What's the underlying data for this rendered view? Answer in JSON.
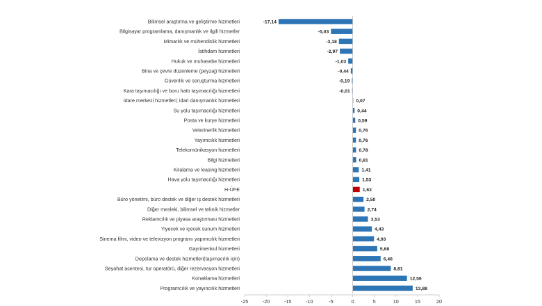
{
  "chart_data": {
    "type": "bar",
    "orientation": "horizontal",
    "categories": [
      "Bilimsel araştırma ve geliştirme hizmetleri",
      "Bilgisayar programlama, danışmanlık ve ilgili hizmetler",
      "Mimarlık ve mühendislik hizmetleri",
      "İstihdam hizmetleri",
      "Hukuk ve muhasebe hizmetleri",
      "Bina ve çevre düzenleme (peyzaj) hizmetleri",
      "Güvenlik ve soruşturma hizmetleri",
      "Kara taşımacılığı ve boru hattı taşımacılığı hizmetleri",
      "İdare merkezi hizmetleri; idari danışmanlık hizmetleri",
      "Su yolu taşımacılığı hizmetleri",
      "Posta ve kurye hizmetleri",
      "Veterinerlik hizmetleri",
      "Yayımcılık hizmetleri",
      "Telekomünikasyon hizmetleri",
      "Bilgi hizmetleri",
      "Kiralama ve leasing hizmetleri",
      "Hava yolu taşımacılığı hizmetleri",
      "H-ÜFE",
      "Büro yönetimi, büro destek ve diğer iş destek hizmetleri",
      "Diğer mesleki, bilimsel ve teknik hizmetler",
      "Reklamcılık ve piyasa araştırması hizmetleri",
      "Yiyecek ve içecek sunum hizmetleri",
      "Sinema filmi, video ve televizyon programı yapımcılık hizmetleri",
      "Gayrimenkul hizmetleri",
      "Depolama ve destek hizmetleri(taşımacılık için)",
      "Seyahat acentesi, tur operatörü, diğer rezervasyon hizmetleri",
      "Konaklama hizmetleri",
      "Programcılık ve yayıncılık hizmetleri"
    ],
    "values": [
      -17.14,
      -5.03,
      -3.18,
      -2.97,
      -1.03,
      -0.44,
      -0.19,
      -0.01,
      0.07,
      0.44,
      0.59,
      0.76,
      0.76,
      0.78,
      0.81,
      1.41,
      1.53,
      1.63,
      2.5,
      2.74,
      3.53,
      4.43,
      4.93,
      5.68,
      6.46,
      8.81,
      12.56,
      13.88
    ],
    "value_labels": [
      "-17,14",
      "-5,03",
      "-3,18",
      "-2,97",
      "-1,03",
      "-0,44",
      "-0,19",
      "-0,01",
      "0,07",
      "0,44",
      "0,59",
      "0,76",
      "0,76",
      "0,78",
      "0,81",
      "1,41",
      "1,53",
      "1,63",
      "2,50",
      "2,74",
      "3,53",
      "4,43",
      "4,93",
      "5,68",
      "6,46",
      "8,81",
      "12,56",
      "13,88"
    ],
    "highlight_category": "H-ÜFE",
    "xlim": [
      -25,
      20
    ],
    "x_ticks": [
      -25,
      -20,
      -15,
      -10,
      -5,
      0,
      5,
      10,
      15,
      20
    ],
    "grid": false,
    "legend": "none",
    "title": "",
    "xlabel": "",
    "ylabel": "",
    "colors": {
      "bar": "#2e75b6",
      "highlight": "#c00000",
      "axis": "#bfbfbf"
    }
  }
}
